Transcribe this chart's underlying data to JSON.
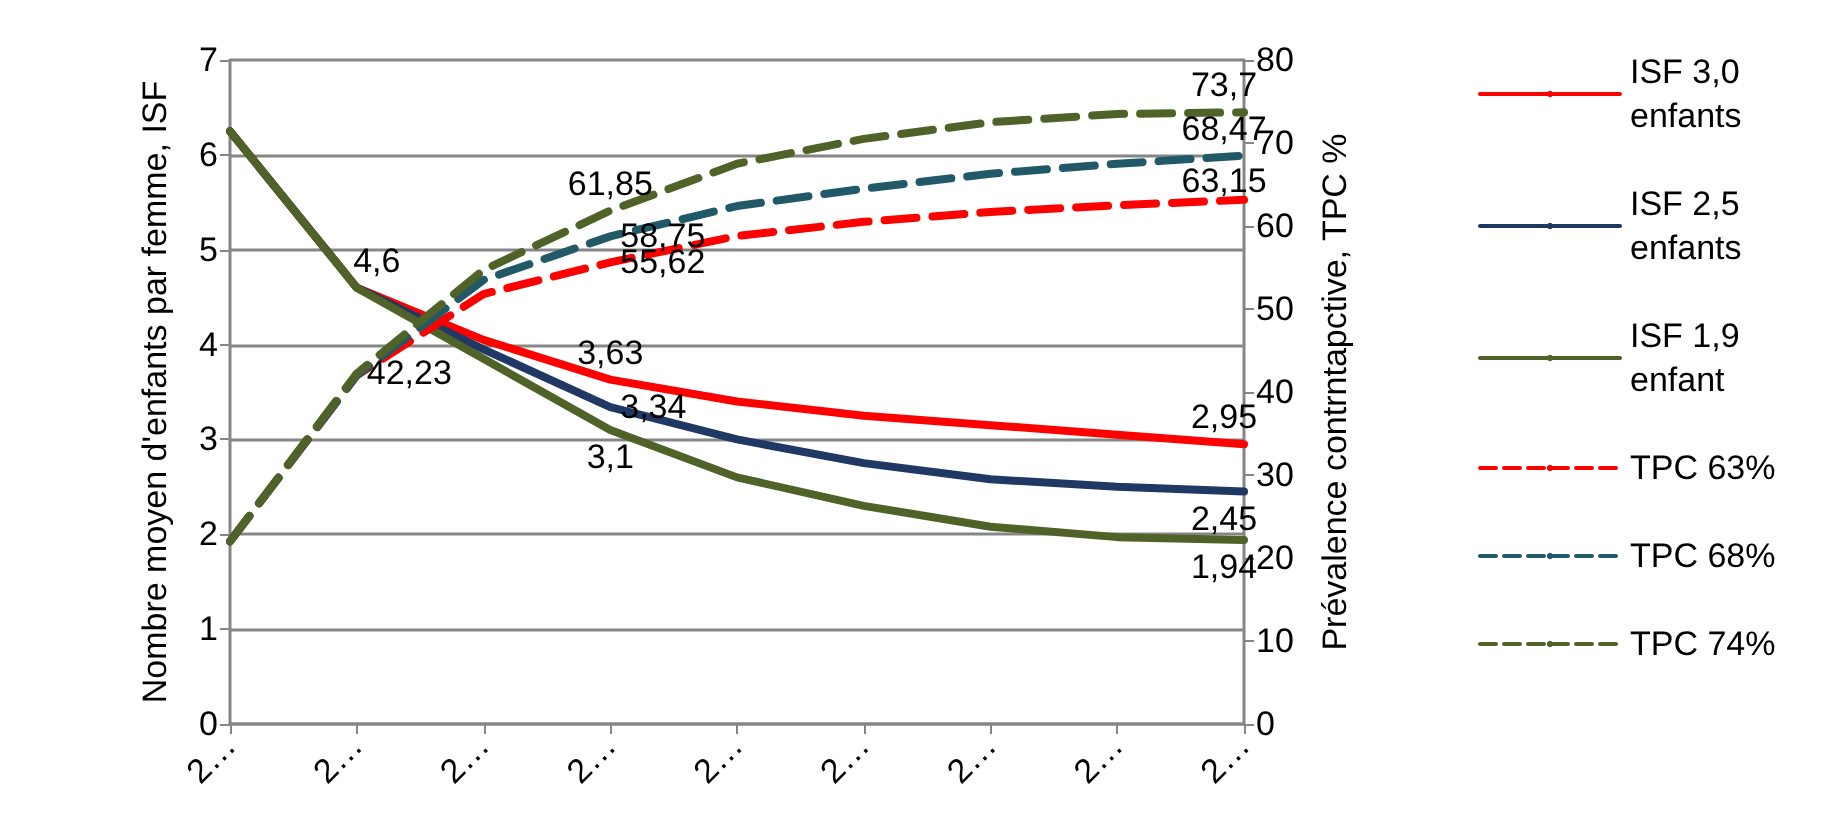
{
  "chart_data": {
    "type": "line",
    "ylabel": "Nombre moyen d'enfants par femme, ISF",
    "y2label": "Prévalence contrntapctive, TPC %",
    "categories": [
      "2…",
      "2…",
      "2…",
      "2…",
      "2…",
      "2…",
      "2…",
      "2…",
      "2…"
    ],
    "ylim": [
      0,
      7
    ],
    "yticks": [
      0,
      1,
      2,
      3,
      4,
      5,
      6,
      7
    ],
    "y2lim": [
      0,
      80
    ],
    "y2ticks": [
      0,
      10,
      20,
      30,
      40,
      50,
      60,
      70,
      80
    ],
    "grid": "y",
    "legend": "right",
    "marker": "none",
    "series": [
      {
        "name": "ISF 3,0 enfants",
        "color": "#ff0000",
        "line_style": "solid",
        "values": [
          6.25,
          4.6,
          4.05,
          3.63,
          3.4,
          3.25,
          3.15,
          3.05,
          2.95
        ],
        "value_labels": [
          null,
          "4,6",
          null,
          "3,63",
          null,
          null,
          null,
          null,
          "2,95"
        ]
      },
      {
        "name": "ISF 2,5 enfants",
        "color": "#1f3864",
        "line_style": "solid",
        "values": [
          6.25,
          4.6,
          3.95,
          3.34,
          3.0,
          2.75,
          2.58,
          2.5,
          2.45
        ],
        "value_labels": [
          null,
          null,
          null,
          "3,34",
          null,
          null,
          null,
          null,
          "2,45"
        ]
      },
      {
        "name": "ISF 1,9 enfant",
        "color": "#4f6228",
        "line_style": "solid",
        "values": [
          6.25,
          4.6,
          3.85,
          3.1,
          2.6,
          2.3,
          2.08,
          1.97,
          1.94
        ],
        "value_labels": [
          null,
          null,
          null,
          "3,1",
          null,
          null,
          null,
          null,
          "1,94"
        ]
      },
      {
        "name": "TPC 63%",
        "color": "#ff0000",
        "line_style": "dashed",
        "axis": "y2",
        "values": [
          22,
          42,
          51.8,
          55.62,
          58.8,
          60.5,
          61.7,
          62.5,
          63.15
        ],
        "value_labels": [
          null,
          null,
          null,
          "55,62",
          null,
          null,
          null,
          null,
          "63,15"
        ]
      },
      {
        "name": "TPC 68%",
        "color": "#215968",
        "line_style": "dashed",
        "axis": "y2",
        "values": [
          22,
          42,
          53.5,
          58.75,
          62.4,
          64.5,
          66.3,
          67.5,
          68.47
        ],
        "value_labels": [
          null,
          null,
          null,
          "58,75",
          null,
          null,
          null,
          null,
          "68,47"
        ]
      },
      {
        "name": "TPC 74%",
        "color": "#4f6228",
        "line_style": "dashed",
        "axis": "y2",
        "values": [
          22,
          42.23,
          54.7,
          61.85,
          67.5,
          70.5,
          72.5,
          73.5,
          73.7
        ],
        "value_labels": [
          null,
          "42,23",
          null,
          "61,85",
          null,
          null,
          null,
          null,
          "73,7"
        ]
      }
    ]
  }
}
